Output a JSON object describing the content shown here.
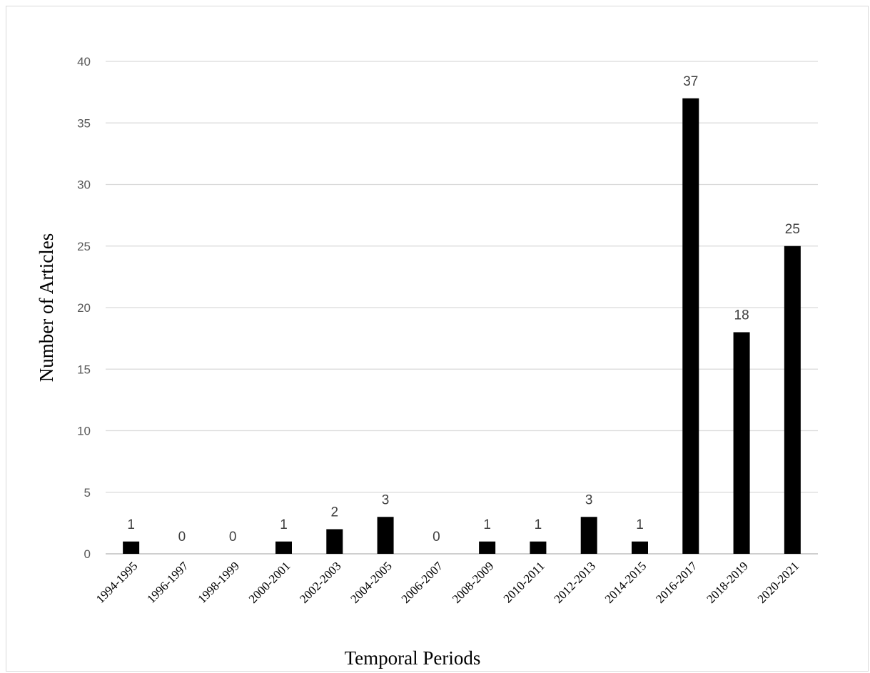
{
  "chart_data": {
    "type": "bar",
    "title": "",
    "xlabel": "Temporal Periods",
    "ylabel": "Number of Articles",
    "categories": [
      "1994-1995",
      "1996-1997",
      "1998-1999",
      "2000-2001",
      "2002-2003",
      "2004-2005",
      "2006-2007",
      "2008-2009",
      "2010-2011",
      "2012-2013",
      "2014-2015",
      "2016-2017",
      "2018-2019",
      "2020-2021"
    ],
    "values": [
      1,
      0,
      0,
      1,
      2,
      3,
      0,
      1,
      1,
      3,
      1,
      37,
      18,
      25
    ],
    "ylim": [
      0,
      40
    ],
    "yticks": [
      0,
      5,
      10,
      15,
      20,
      25,
      30,
      35,
      40
    ],
    "grid": true,
    "legend": "none",
    "bar_color": "#000000"
  }
}
